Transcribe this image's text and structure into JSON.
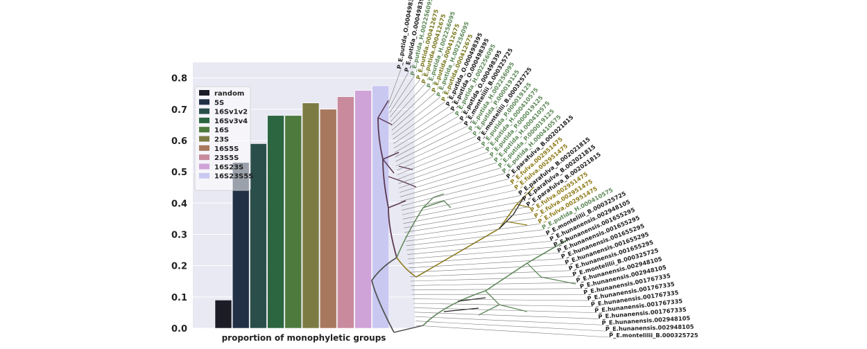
{
  "chart_data": {
    "type": "bar",
    "xlabel": "proportion of monophyletic groups",
    "ylim": [
      0,
      0.85
    ],
    "yticks": [
      0.0,
      0.1,
      0.2,
      0.3,
      0.4,
      0.5,
      0.6,
      0.7,
      0.8
    ],
    "ytick_labels": [
      "0.0",
      "0.1",
      "0.2",
      "0.3",
      "0.4",
      "0.5",
      "0.6",
      "0.7",
      "0.8"
    ],
    "legend_position": "top-left",
    "series": [
      {
        "name": "random",
        "color": "#1c1c26"
      },
      {
        "name": "5S",
        "color": "#223046"
      },
      {
        "name": "16Sv1v2",
        "color": "#2a4f4a"
      },
      {
        "name": "16Sv3v4",
        "color": "#2c6640"
      },
      {
        "name": "16S",
        "color": "#4f7a3e"
      },
      {
        "name": "23S",
        "color": "#7d7b44"
      },
      {
        "name": "16S5S",
        "color": "#a8785e"
      },
      {
        "name": "23S5S",
        "color": "#c98a9e"
      },
      {
        "name": "16S23S",
        "color": "#d0a3d8"
      },
      {
        "name": "16S23S5S",
        "color": "#c9c8f1"
      }
    ],
    "bars": [
      {
        "series": "random",
        "value": 0.09
      },
      {
        "series": "5S",
        "value": 0.53
      },
      {
        "series": "16Sv1v2",
        "value": 0.59
      },
      {
        "series": "16Sv3v4",
        "value": 0.68
      },
      {
        "series": "16S",
        "value": 0.68
      },
      {
        "series": "23S",
        "value": 0.72
      },
      {
        "series": "16S5S",
        "value": 0.7
      },
      {
        "series": "23S5S",
        "value": 0.74
      },
      {
        "series": "16S23S",
        "value": 0.76
      },
      {
        "series": "16S23S5S",
        "value": 0.775
      }
    ]
  },
  "tree": {
    "colors": {
      "olive": "#8f7c1a",
      "green": "#5f8a5a",
      "dark": "#222222",
      "purple": "#5a3850",
      "plain": "#555555"
    },
    "leaves": [
      {
        "label": "P_E.putida_O.000498395",
        "color": "#222222"
      },
      {
        "label": "P_E.putida_O.000498395",
        "color": "#222222"
      },
      {
        "label": "P_E.putida_H.002256095",
        "color": "#5f8a5a"
      },
      {
        "label": "P_E.putida.000412675",
        "color": "#7a7a22"
      },
      {
        "label": "P_E.putida.000412675",
        "color": "#7a7a22"
      },
      {
        "label": "P_E.putida_H.002256095",
        "color": "#5f8a5a"
      },
      {
        "label": "P_E.putida.000412675",
        "color": "#7a7a22"
      },
      {
        "label": "P_E.putida_H.002256095",
        "color": "#5f8a5a"
      },
      {
        "label": "P_E.putida.000412675",
        "color": "#7a7a22"
      },
      {
        "label": "P_E.putida_O.000498395",
        "color": "#222222"
      },
      {
        "label": "P_E.putida_O.000498395",
        "color": "#222222"
      },
      {
        "label": "P_E.putida_H.002256095",
        "color": "#5f8a5a"
      },
      {
        "label": "P_E.putida_O.000498395",
        "color": "#222222"
      },
      {
        "label": "P_E.montelilii_B.000325725",
        "color": "#222222"
      },
      {
        "label": "P_E.putida_H.002256095",
        "color": "#5f8a5a"
      },
      {
        "label": "P_E.putida_P.000019125",
        "color": "#5f8a5a"
      },
      {
        "label": "P_E.montelilii_B.000325725",
        "color": "#222222"
      },
      {
        "label": "P_E.putida_P.000019125",
        "color": "#5f8a5a"
      },
      {
        "label": "P_E.putida_H.000410575",
        "color": "#5f8a5a"
      },
      {
        "label": "P_E.putida_P.000019125",
        "color": "#5f8a5a"
      },
      {
        "label": "P_E.putida_H.000410575",
        "color": "#5f8a5a"
      },
      {
        "label": "P_E.putida_P.000019125",
        "color": "#5f8a5a"
      },
      {
        "label": "P_E.putida_H.000410575",
        "color": "#5f8a5a"
      },
      {
        "label": "P_E.parafulva_B.002021815",
        "color": "#222222"
      },
      {
        "label": "P_E.fulva.002951475",
        "color": "#8f7c1a"
      },
      {
        "label": "P_E.fulva.002951475",
        "color": "#8f7c1a"
      },
      {
        "label": "P_E.parafulva_B.002021815",
        "color": "#222222"
      },
      {
        "label": "P_E.parafulva_B.002021815",
        "color": "#222222"
      },
      {
        "label": "P_E.parafulva_B.002021815",
        "color": "#222222"
      },
      {
        "label": "P_E.fulva.002951475",
        "color": "#8f7c1a"
      },
      {
        "label": "P_E.fulva.002951475",
        "color": "#8f7c1a"
      },
      {
        "label": "P_E.fulva.002951475",
        "color": "#8f7c1a"
      },
      {
        "label": "P_E.putida_H.000410575",
        "color": "#5f8a5a"
      },
      {
        "label": "P_E.montelilii_B.000325725",
        "color": "#222222"
      },
      {
        "label": "P_E.hunanensis.002948105",
        "color": "#222222"
      },
      {
        "label": "P_E.hunanensis.001655295",
        "color": "#222222"
      },
      {
        "label": "P_E.hunanensis.001655295",
        "color": "#222222"
      },
      {
        "label": "P_E.hunanensis.001655295",
        "color": "#222222"
      },
      {
        "label": "P_E.hunanensis.001655295",
        "color": "#222222"
      },
      {
        "label": "P_E.hunanensis.001655295",
        "color": "#222222"
      },
      {
        "label": "P_E.montelilii_B.000325725",
        "color": "#222222"
      },
      {
        "label": "P_E.hunanensis.002948105",
        "color": "#222222"
      },
      {
        "label": "P_E.hunanensis.002948105",
        "color": "#222222"
      },
      {
        "label": "P_E.hunanensis.001767335",
        "color": "#222222"
      },
      {
        "label": "P_E.hunanensis.001767335",
        "color": "#222222"
      },
      {
        "label": "P_E.hunanensis.001767335",
        "color": "#222222"
      },
      {
        "label": "P_E.hunanensis.001767335",
        "color": "#222222"
      },
      {
        "label": "P_E.hunanensis.001767335",
        "color": "#222222"
      },
      {
        "label": "P_E.hunanensis.002948105",
        "color": "#222222"
      },
      {
        "label": "P_E.hunanensis.002948105",
        "color": "#222222"
      },
      {
        "label": "P_E.montelilii_B.000325725",
        "color": "#222222"
      }
    ]
  }
}
